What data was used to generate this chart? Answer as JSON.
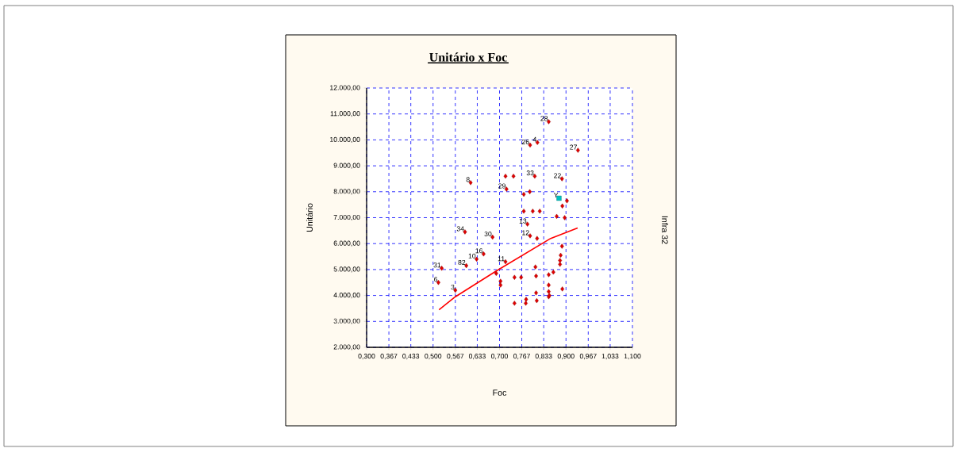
{
  "chart_data": {
    "type": "scatter",
    "title": "Unitário x Foc",
    "xlabel": "Foc",
    "ylabel": "Unitário",
    "xlim": [
      0.3,
      1.1
    ],
    "xticks": [
      {
        "value": 0.3,
        "label": "0,300"
      },
      {
        "value": 0.367,
        "label": "0,367"
      },
      {
        "value": 0.433,
        "label": "0,433"
      },
      {
        "value": 0.5,
        "label": "0,500"
      },
      {
        "value": 0.567,
        "label": "0,567"
      },
      {
        "value": 0.633,
        "label": "0,633"
      },
      {
        "value": 0.7,
        "label": "0,700"
      },
      {
        "value": 0.767,
        "label": "0,767"
      },
      {
        "value": 0.833,
        "label": "0,833"
      },
      {
        "value": 0.9,
        "label": "0,900"
      },
      {
        "value": 0.967,
        "label": "0,967"
      },
      {
        "value": 1.033,
        "label": "1,033"
      },
      {
        "value": 1.1,
        "label": "1,100"
      }
    ],
    "ylim": [
      2000,
      12000
    ],
    "yticks": [
      {
        "value": 2000,
        "label": "2.000,00"
      },
      {
        "value": 3000,
        "label": "3.000,00"
      },
      {
        "value": 4000,
        "label": "4.000,00"
      },
      {
        "value": 5000,
        "label": "5.000,00"
      },
      {
        "value": 6000,
        "label": "6.000,00"
      },
      {
        "value": 7000,
        "label": "7.000,00"
      },
      {
        "value": 8000,
        "label": "8.000,00"
      },
      {
        "value": 9000,
        "label": "9.000,00"
      },
      {
        "value": 10000,
        "label": "10.000,00"
      },
      {
        "value": 11000,
        "label": "11.000,00"
      },
      {
        "value": 12000,
        "label": "12.000,00"
      }
    ],
    "grid": true,
    "marker": "diamond",
    "series": [
      {
        "color": "#e00000",
        "x": [
          0.613,
          0.848,
          0.792,
          0.814,
          0.936,
          0.718,
          0.742,
          0.806,
          0.888,
          0.721,
          0.773,
          0.791,
          0.903,
          0.889,
          0.872,
          0.896,
          0.773,
          0.8,
          0.821,
          0.784,
          0.792,
          0.813,
          0.679,
          0.888,
          0.884,
          0.882,
          0.882,
          0.718,
          0.808,
          0.862,
          0.848,
          0.81,
          0.745,
          0.765,
          0.703,
          0.703,
          0.848,
          0.889,
          0.81,
          0.848,
          0.848,
          0.78,
          0.812,
          0.745,
          0.779,
          0.85,
          0.596,
          0.652,
          0.631,
          0.6,
          0.526,
          0.516,
          0.567,
          0.69
        ],
        "values": [
          8350,
          10700,
          9800,
          9900,
          9600,
          8600,
          8600,
          8600,
          8500,
          8100,
          7900,
          8000,
          7650,
          7450,
          7050,
          7000,
          7250,
          7250,
          7250,
          6750,
          6300,
          6200,
          6250,
          5900,
          5550,
          5350,
          5200,
          5300,
          5100,
          4900,
          4800,
          4750,
          4700,
          4700,
          4550,
          4400,
          4400,
          4250,
          4100,
          4150,
          3950,
          3850,
          3800,
          3700,
          3700,
          4000,
          6450,
          5600,
          5400,
          5150,
          5050,
          4500,
          4200,
          4850
        ]
      },
      {
        "color": "#00c0c0",
        "marker": "square",
        "x": [
          0.879
        ],
        "values": [
          7750
        ]
      },
      {
        "type": "line",
        "color": "#ff0000",
        "marker": "none",
        "x": [
          0.518,
          0.567,
          0.691,
          0.854,
          0.935
        ],
        "values": [
          3450,
          3950,
          4950,
          6200,
          6600
        ]
      }
    ],
    "annotations": [
      {
        "text": "8",
        "x": 0.613,
        "y": 8350
      },
      {
        "text": "28",
        "x": 0.848,
        "y": 10700
      },
      {
        "text": "26",
        "x": 0.792,
        "y": 9800
      },
      {
        "text": "4",
        "x": 0.814,
        "y": 9900
      },
      {
        "text": "27",
        "x": 0.936,
        "y": 9600
      },
      {
        "text": "33",
        "x": 0.806,
        "y": 8600
      },
      {
        "text": "22",
        "x": 0.888,
        "y": 8500
      },
      {
        "text": "29",
        "x": 0.721,
        "y": 8100
      },
      {
        "text": "Y",
        "x": 0.879,
        "y": 7750
      },
      {
        "text": "13",
        "x": 0.784,
        "y": 6750
      },
      {
        "text": "12",
        "x": 0.792,
        "y": 6300
      },
      {
        "text": "30",
        "x": 0.679,
        "y": 6250
      },
      {
        "text": "11",
        "x": 0.718,
        "y": 5300
      },
      {
        "text": "34",
        "x": 0.596,
        "y": 6450
      },
      {
        "text": "16",
        "x": 0.652,
        "y": 5600
      },
      {
        "text": "10",
        "x": 0.631,
        "y": 5400
      },
      {
        "text": "82",
        "x": 0.6,
        "y": 5150
      },
      {
        "text": "31",
        "x": 0.526,
        "y": 5050
      },
      {
        "text": "6",
        "x": 0.516,
        "y": 4500
      },
      {
        "text": "3",
        "x": 0.567,
        "y": 4200
      },
      "Infra 32"
    ]
  }
}
